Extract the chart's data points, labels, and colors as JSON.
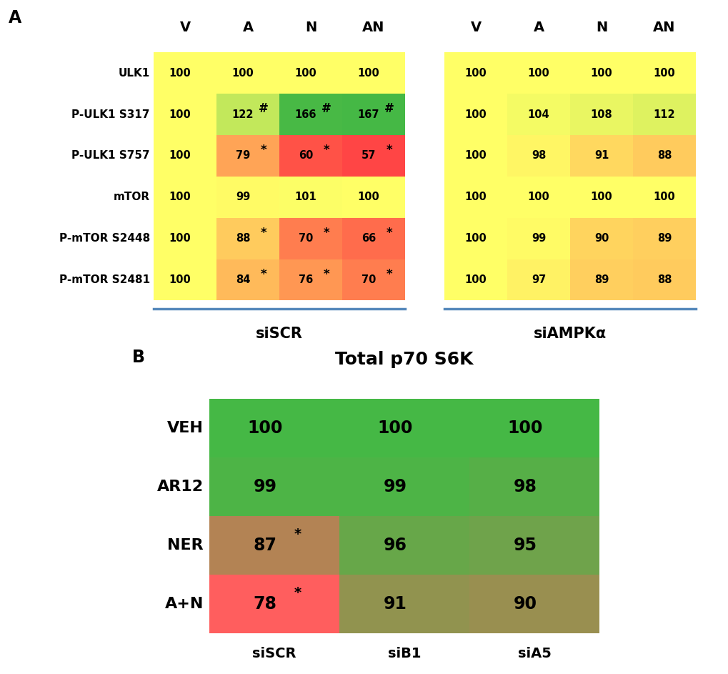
{
  "panel_A": {
    "row_labels": [
      "ULK1",
      "P-ULK1 S317",
      "P-ULK1 S757",
      "mTOR",
      "P-mTOR S2448",
      "P-mTOR S2481"
    ],
    "col_labels_siSCR": [
      "V",
      "A",
      "N",
      "AN"
    ],
    "col_labels_siAMPK": [
      "V",
      "A",
      "N",
      "AN"
    ],
    "values_siSCR": [
      [
        100,
        100,
        100,
        100
      ],
      [
        100,
        122,
        166,
        167
      ],
      [
        100,
        79,
        60,
        57
      ],
      [
        100,
        99,
        101,
        100
      ],
      [
        100,
        88,
        70,
        66
      ],
      [
        100,
        84,
        76,
        70
      ]
    ],
    "values_siAMPK": [
      [
        100,
        100,
        100,
        100
      ],
      [
        100,
        104,
        108,
        112
      ],
      [
        100,
        98,
        91,
        88
      ],
      [
        100,
        100,
        100,
        100
      ],
      [
        100,
        99,
        90,
        89
      ],
      [
        100,
        97,
        89,
        88
      ]
    ],
    "sig_siSCR": [
      [
        null,
        null,
        null,
        null
      ],
      [
        null,
        "#",
        "#",
        "#"
      ],
      [
        null,
        "*",
        "*",
        "*"
      ],
      [
        null,
        null,
        null,
        null
      ],
      [
        null,
        "*",
        "*",
        "*"
      ],
      [
        null,
        "*",
        "*",
        "*"
      ]
    ],
    "label_siSCR": "siSCR",
    "label_siAMPK": "siAMPKα"
  },
  "panel_B": {
    "title": "Total p70 S6K",
    "row_labels": [
      "VEH",
      "AR12",
      "NER",
      "A+N"
    ],
    "col_labels": [
      "siSCR",
      "siB1",
      "siA5"
    ],
    "values": [
      [
        100,
        100,
        100
      ],
      [
        99,
        99,
        98
      ],
      [
        87,
        96,
        95
      ],
      [
        78,
        91,
        90
      ]
    ],
    "sig": [
      [
        null,
        null,
        null
      ],
      [
        null,
        null,
        null
      ],
      [
        "*",
        null,
        null
      ],
      [
        "*",
        null,
        null
      ]
    ]
  },
  "yellow_bg": "#FFEE66"
}
